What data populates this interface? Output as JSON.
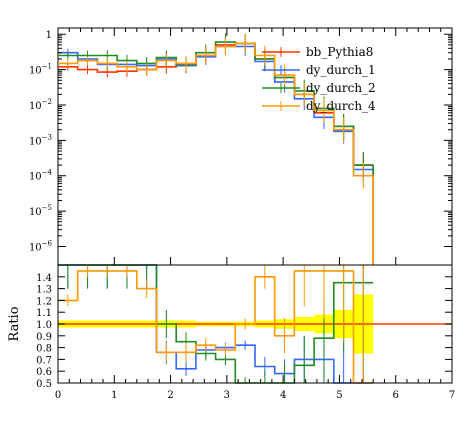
{
  "chart_data": {
    "type": "line",
    "title": "",
    "xlabel": "",
    "xlim": [
      0,
      7
    ],
    "x_ticks": [
      "0",
      "1",
      "2",
      "3",
      "4",
      "5",
      "6",
      "7"
    ],
    "main": {
      "ylabel": "",
      "yscale": "log",
      "ylim": [
        3e-07,
        1.5
      ],
      "y_ticks": [
        {
          "value": 1,
          "base": "1",
          "exp": ""
        },
        {
          "value": 0.1,
          "base": "10",
          "exp": "−1"
        },
        {
          "value": 0.01,
          "base": "10",
          "exp": "−2"
        },
        {
          "value": 0.001,
          "base": "10",
          "exp": "−3"
        },
        {
          "value": 0.0001,
          "base": "10",
          "exp": "−4"
        },
        {
          "value": 1e-05,
          "base": "10",
          "exp": "−5"
        },
        {
          "value": 1e-06,
          "base": "10",
          "exp": "−6"
        }
      ]
    },
    "ratio": {
      "ylabel": "Ratio",
      "ylim": [
        0.5,
        1.5
      ],
      "y_ticks": [
        "0.5",
        "0.6",
        "0.7",
        "0.8",
        "0.9",
        "1.0",
        "1.1",
        "1.2",
        "1.3",
        "1.4"
      ],
      "reference": 1.0,
      "band_color": "#ffff00"
    },
    "bin_edges": [
      0,
      0.35,
      0.7,
      1.05,
      1.4,
      1.75,
      2.1,
      2.45,
      2.8,
      3.15,
      3.5,
      3.85,
      4.2,
      4.55,
      4.9,
      5.25,
      5.6
    ],
    "series": [
      {
        "name": "bb_Pythia8",
        "color": "#ff3300",
        "values": [
          0.12,
          0.1,
          0.085,
          0.09,
          0.1,
          0.12,
          0.13,
          0.25,
          0.5,
          0.55,
          0.2,
          0.06,
          0.02,
          0.006,
          0.0025,
          0.0002
        ],
        "ratio": [
          1.0,
          1.0,
          1.0,
          1.0,
          1.0,
          1.0,
          1.0,
          1.0,
          1.0,
          1.0,
          1.0,
          1.0,
          1.0,
          1.0,
          1.0,
          1.0
        ],
        "ratio_unc": [
          0.03,
          0.03,
          0.03,
          0.03,
          0.03,
          0.03,
          0.03,
          0.02,
          0.02,
          0.02,
          0.03,
          0.04,
          0.06,
          0.08,
          0.12,
          0.25
        ]
      },
      {
        "name": "dy_durch_1",
        "color": "#3366ff",
        "values": [
          0.3,
          0.2,
          0.14,
          0.14,
          0.13,
          0.2,
          0.13,
          0.23,
          0.45,
          0.45,
          0.17,
          0.045,
          0.015,
          0.0045,
          0.0018,
          0.00015
        ],
        "ratio": [
          1.6,
          1.6,
          1.6,
          1.6,
          1.6,
          0.76,
          0.62,
          0.78,
          0.8,
          0.82,
          0.64,
          0.58,
          0.7,
          0.7,
          0.5,
          0.5
        ],
        "ratio_unc": [
          0.3,
          0.3,
          0.3,
          0.3,
          0.3,
          0.1,
          0.06,
          0.06,
          0.04,
          0.04,
          0.08,
          0.12,
          0.2,
          0.3,
          0.6,
          1.0
        ]
      },
      {
        "name": "dy_durch_2",
        "color": "#228b22",
        "values": [
          0.25,
          0.25,
          0.25,
          0.18,
          0.15,
          0.22,
          0.14,
          0.3,
          0.6,
          0.55,
          0.2,
          0.06,
          0.025,
          0.008,
          0.0025,
          0.0002
        ],
        "ratio": [
          1.6,
          1.6,
          1.6,
          1.6,
          1.6,
          1.0,
          0.85,
          0.75,
          0.7,
          0.5,
          0.5,
          0.5,
          0.65,
          0.88,
          1.35,
          1.35
        ],
        "ratio_unc": [
          0.3,
          0.3,
          0.3,
          0.3,
          0.3,
          0.12,
          0.08,
          0.06,
          0.05,
          0.05,
          0.1,
          0.15,
          0.25,
          0.35,
          0.6,
          1.0
        ]
      },
      {
        "name": "dy_durch_4",
        "color": "#ff9900",
        "values": [
          0.15,
          0.18,
          0.15,
          0.12,
          0.1,
          0.18,
          0.15,
          0.25,
          0.45,
          0.55,
          0.25,
          0.07,
          0.02,
          0.007,
          0.002,
          0.0001
        ],
        "ratio": [
          1.2,
          1.45,
          1.45,
          1.45,
          1.3,
          0.76,
          0.76,
          0.82,
          0.78,
          1.0,
          1.4,
          0.9,
          1.45,
          1.45,
          1.45,
          0.5
        ],
        "ratio_unc": [
          0.05,
          0.05,
          0.05,
          0.05,
          0.08,
          0.08,
          0.08,
          0.06,
          0.05,
          0.05,
          0.1,
          0.15,
          0.3,
          0.4,
          0.6,
          1.0
        ]
      }
    ]
  }
}
